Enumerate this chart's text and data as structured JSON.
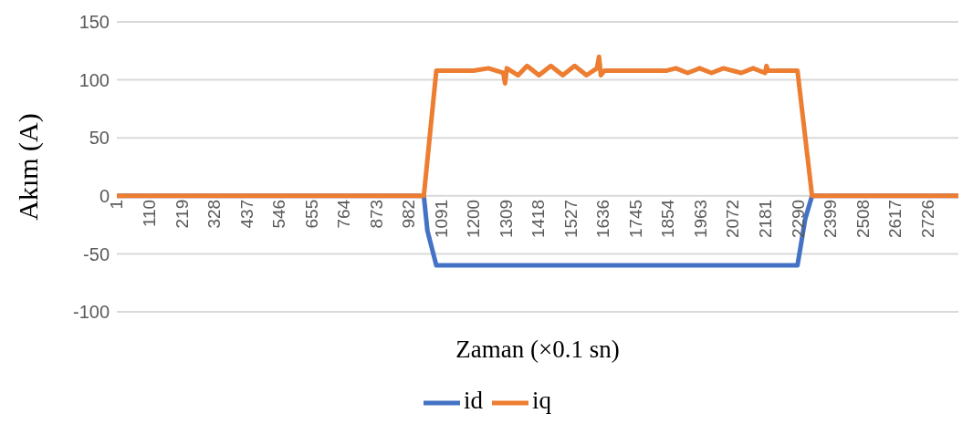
{
  "chart_data": {
    "type": "line",
    "xlabel": "Zaman (×0.1 sn)",
    "ylabel": "Akım (A)",
    "xlim": [
      1,
      2830
    ],
    "xticks": [
      1,
      110,
      219,
      328,
      437,
      546,
      655,
      764,
      873,
      982,
      1091,
      1200,
      1309,
      1418,
      1527,
      1636,
      1745,
      1854,
      1963,
      2072,
      2181,
      2290,
      2399,
      2508,
      2617,
      2726
    ],
    "ylim": [
      -100,
      150
    ],
    "yticks": [
      -100,
      -50,
      0,
      50,
      100,
      150
    ],
    "grid": "y",
    "legend": "bottom",
    "marker": "none",
    "line_style": "solid",
    "series": [
      {
        "name": "id",
        "color": "#4472c4",
        "x": [
          1,
          1033,
          1045,
          1075,
          2289,
          2315,
          2338,
          2830
        ],
        "values": [
          0,
          0,
          -30,
          -60,
          -60,
          -20,
          0,
          0
        ]
      },
      {
        "name": "iq",
        "color": "#ed7d31",
        "x": [
          1,
          1033,
          1075,
          1200,
          1250,
          1300,
          1306,
          1312,
          1350,
          1380,
          1420,
          1460,
          1500,
          1540,
          1580,
          1615,
          1622,
          1628,
          1640,
          1850,
          1880,
          1920,
          1960,
          2000,
          2040,
          2100,
          2140,
          2180,
          2185,
          2190,
          2289,
          2338,
          2830
        ],
        "values": [
          0,
          0,
          108,
          108,
          110,
          106,
          97,
          110,
          104,
          112,
          104,
          112,
          104,
          112,
          104,
          110,
          120,
          104,
          108,
          108,
          110,
          106,
          110,
          106,
          110,
          106,
          110,
          106,
          112,
          108,
          108,
          0,
          0
        ]
      }
    ]
  }
}
